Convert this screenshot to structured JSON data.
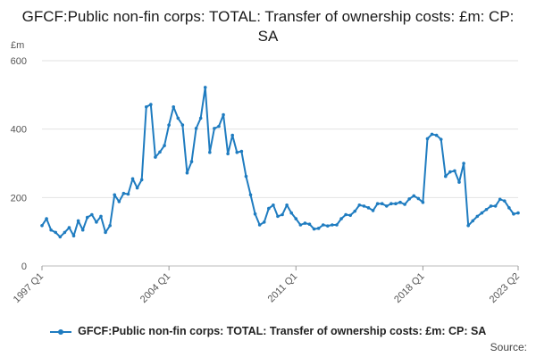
{
  "chart_data": {
    "type": "line",
    "title": "GFCF:Public non-fin corps: TOTAL: Transfer of ownership costs: £m: CP: SA",
    "ylabel": "£m",
    "xlabel": "",
    "ylim": [
      0,
      600
    ],
    "yticks": [
      "0",
      "200",
      "400",
      "600"
    ],
    "xticks": [
      {
        "label": "1997 Q1",
        "index": 0
      },
      {
        "label": "2004 Q1",
        "index": 28
      },
      {
        "label": "2011 Q1",
        "index": 56
      },
      {
        "label": "2018 Q1",
        "index": 84
      },
      {
        "label": "2023 Q2",
        "index": 105
      }
    ],
    "grid": true,
    "legend_position": "bottom",
    "color": "#1f7cc0",
    "x_start": "1997 Q1",
    "x_end": "2023 Q2",
    "series": [
      {
        "name": "GFCF:Public non-fin corps: TOTAL: Transfer of ownership costs: £m: CP: SA",
        "values": [
          118,
          138,
          105,
          98,
          85,
          98,
          112,
          88,
          132,
          105,
          142,
          150,
          128,
          145,
          98,
          118,
          208,
          188,
          212,
          210,
          255,
          228,
          252,
          465,
          472,
          318,
          333,
          352,
          412,
          465,
          432,
          412,
          272,
          305,
          402,
          432,
          522,
          332,
          402,
          408,
          442,
          328,
          382,
          332,
          335,
          262,
          208,
          152,
          120,
          128,
          168,
          178,
          145,
          150,
          178,
          155,
          138,
          120,
          125,
          122,
          108,
          110,
          120,
          117,
          120,
          120,
          138,
          150,
          148,
          160,
          178,
          175,
          170,
          162,
          182,
          182,
          175,
          182,
          182,
          186,
          180,
          196,
          205,
          197,
          186,
          372,
          385,
          382,
          370,
          262,
          275,
          278,
          245,
          300,
          118,
          132,
          145,
          155,
          165,
          175,
          175,
          195,
          190,
          170,
          152,
          155
        ]
      }
    ]
  },
  "source": "Source:"
}
